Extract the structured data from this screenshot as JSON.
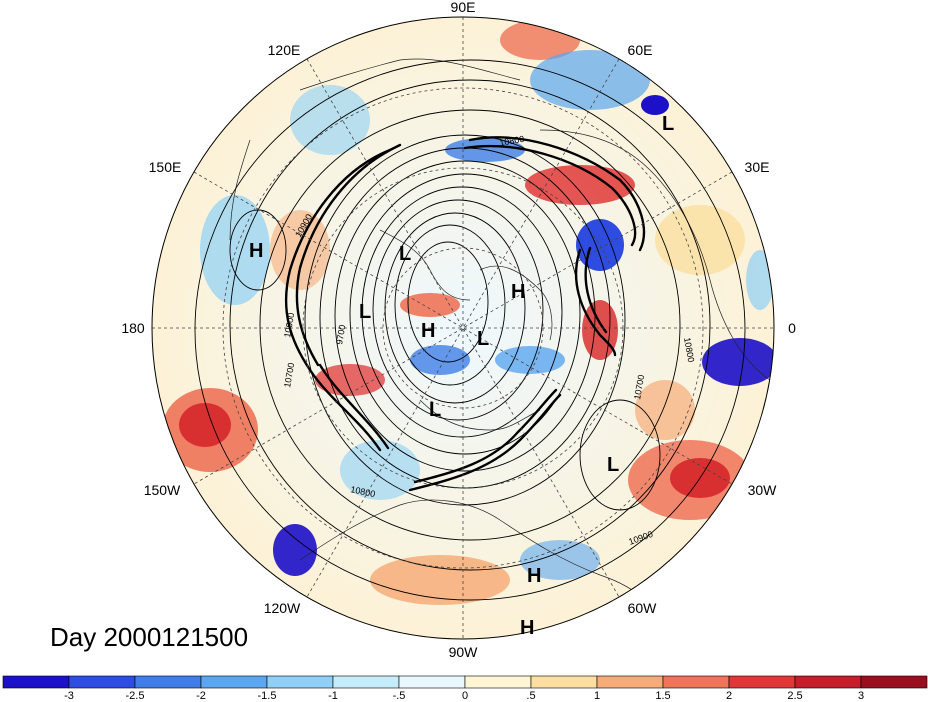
{
  "title": "Day 2000121500",
  "longitude_labels": [
    {
      "id": "lon-90e",
      "text": "90E"
    },
    {
      "id": "lon-60e",
      "text": "60E"
    },
    {
      "id": "lon-30e",
      "text": "30E"
    },
    {
      "id": "lon-0",
      "text": "0"
    },
    {
      "id": "lon-30w",
      "text": "30W"
    },
    {
      "id": "lon-60w",
      "text": "60W"
    },
    {
      "id": "lon-90w",
      "text": "90W"
    },
    {
      "id": "lon-120w",
      "text": "120W"
    },
    {
      "id": "lon-150w",
      "text": "150W"
    },
    {
      "id": "lon-180",
      "text": "180"
    },
    {
      "id": "lon-150e",
      "text": "150E"
    },
    {
      "id": "lon-120e",
      "text": "120E"
    }
  ],
  "contour_labels": [
    "10800",
    "10900",
    "9700",
    "10900",
    "10700",
    "10800",
    "10800",
    "10900",
    "10700"
  ],
  "pressure_centers": [
    {
      "type": "L"
    },
    {
      "type": "H"
    },
    {
      "type": "L"
    },
    {
      "type": "L"
    },
    {
      "type": "H"
    },
    {
      "type": "H"
    },
    {
      "type": "L"
    },
    {
      "type": "L"
    },
    {
      "type": "L"
    },
    {
      "type": "H"
    },
    {
      "type": "H"
    }
  ],
  "colorbar": {
    "colors": [
      "#1c10c8",
      "#2f4ce0",
      "#3f7ee8",
      "#5aa6f0",
      "#8ed0f6",
      "#c4ecfb",
      "#e8f8fd",
      "#fdf5d3",
      "#fbdea0",
      "#f6ac79",
      "#ee7358",
      "#e03838",
      "#c31e2a",
      "#9a0f1f"
    ],
    "tick_labels": [
      "-3",
      "-2.5",
      "-2",
      "-1.5",
      "-1",
      "-.5",
      "0",
      ".5",
      "1",
      "1.5",
      "2",
      "2.5",
      "3"
    ]
  }
}
